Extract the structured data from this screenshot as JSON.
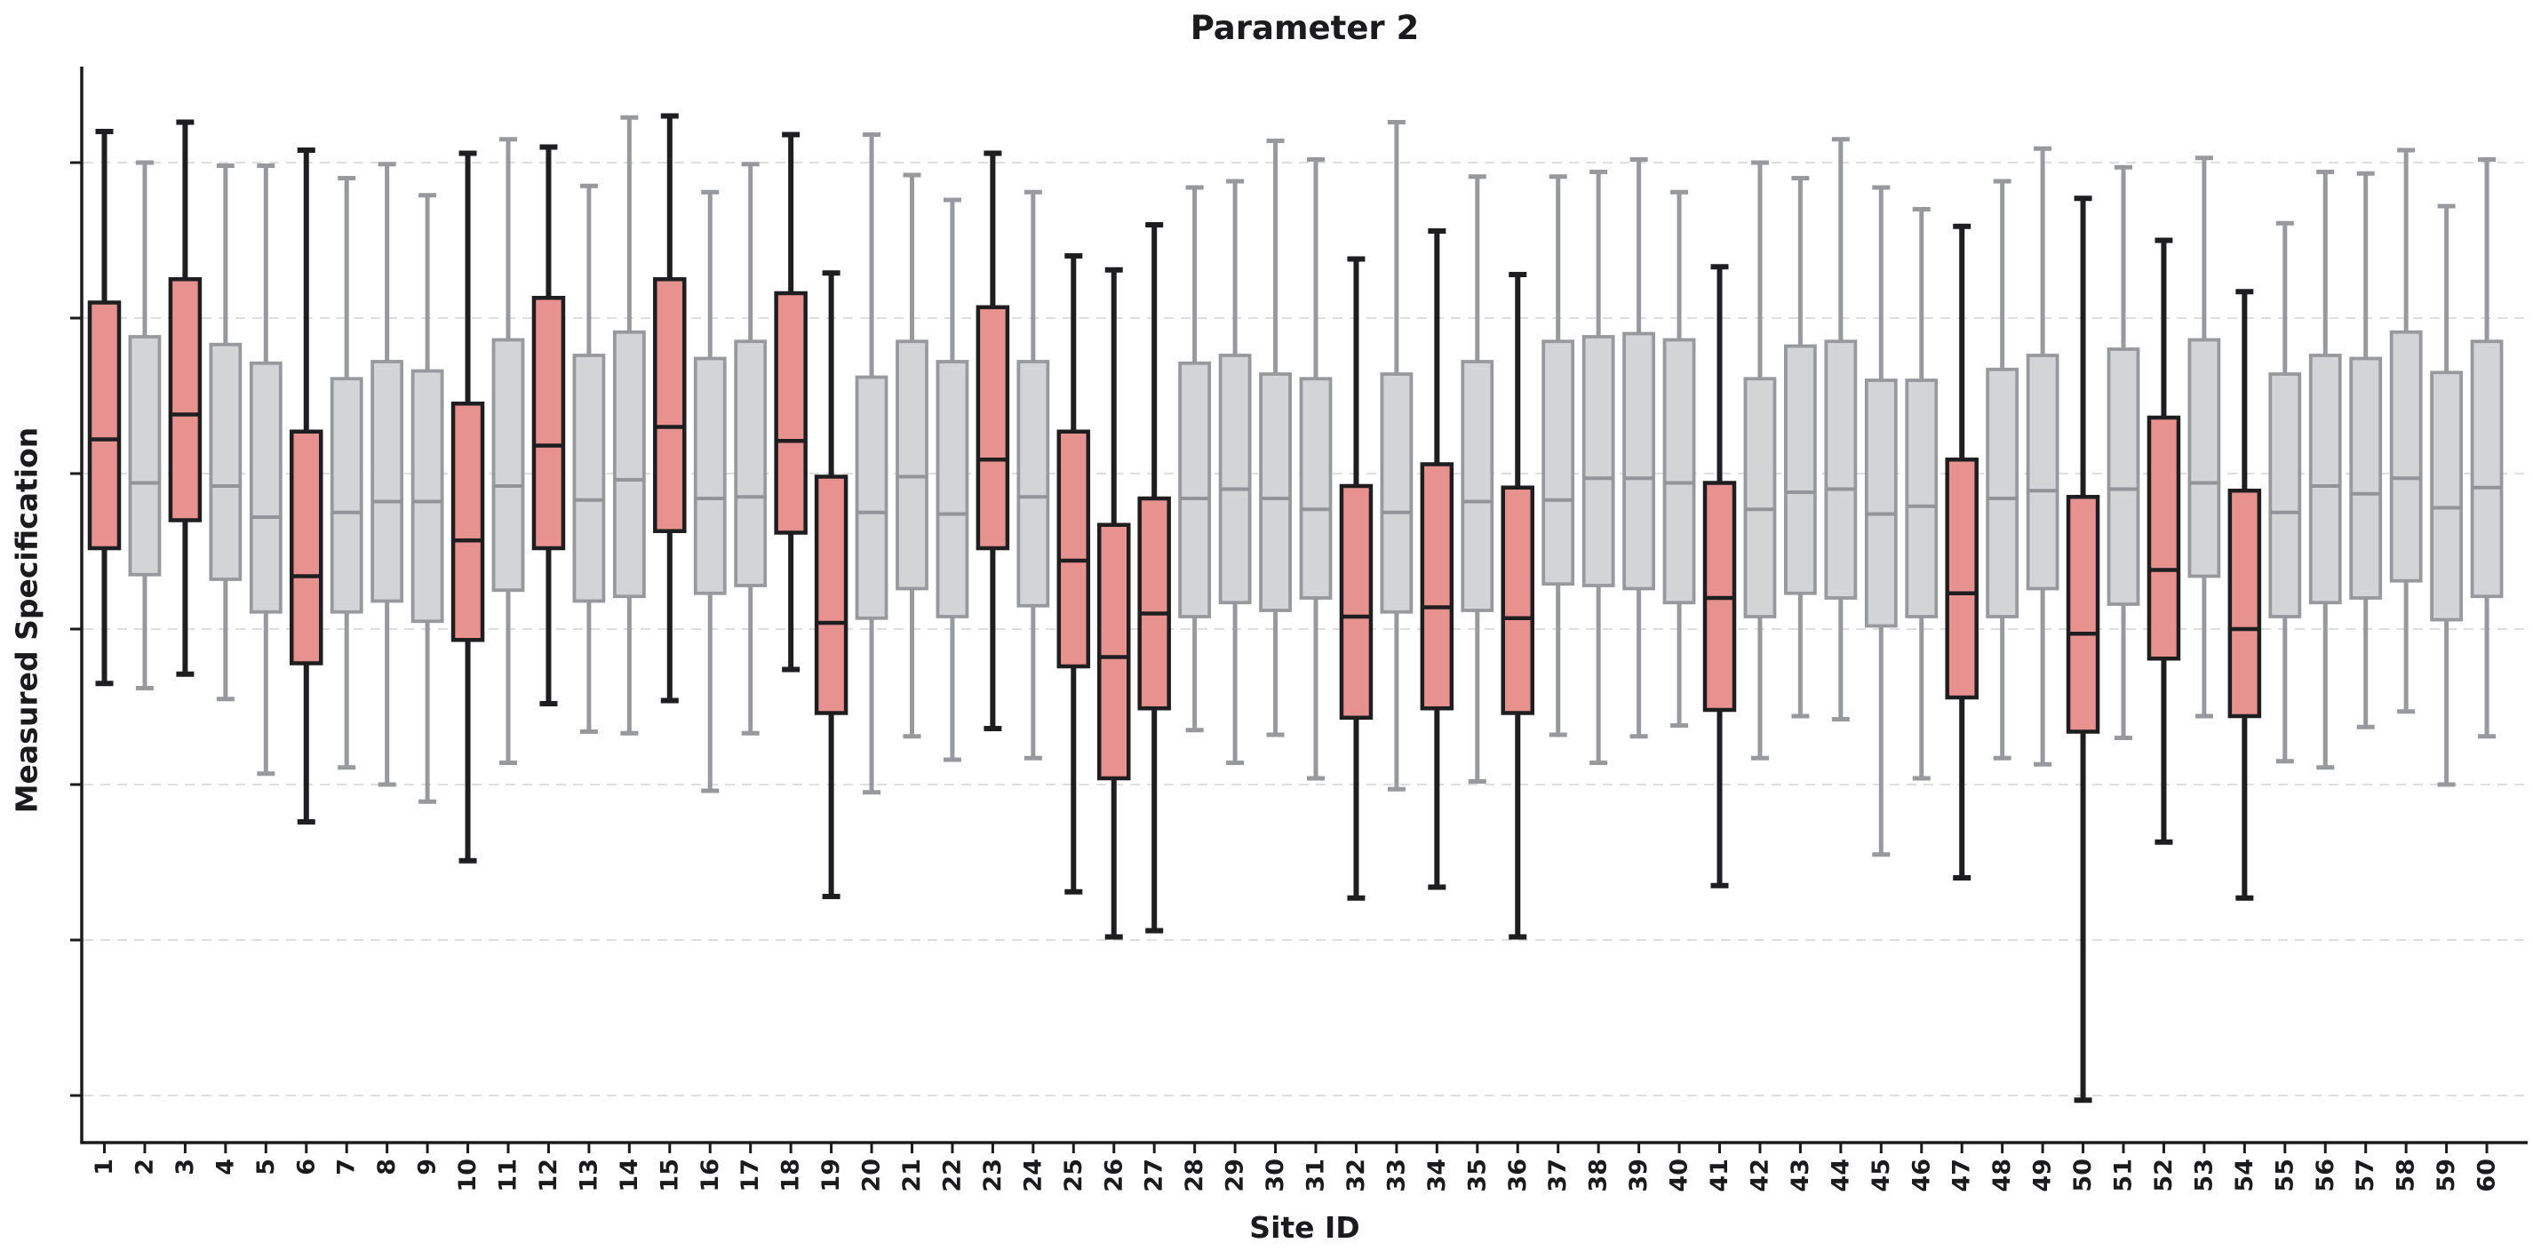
{
  "title": "Parameter 2",
  "x_axis": {
    "label": "Site ID"
  },
  "y_axis": {
    "label": "Measured Specification",
    "tick_labels_visible": false,
    "tick_count": 7
  },
  "colors": {
    "background": "#ffffff",
    "highlight_fill": "#E8928F",
    "highlight_stroke": "#1E1E20",
    "normal_fill": "#D3D4D6",
    "normal_stroke": "#97999C",
    "normal_median": "#929497",
    "grid": "#DADADA",
    "axis": "#1B1B1D"
  },
  "chart_data": {
    "type": "boxplot",
    "title": "Parameter 2",
    "xlabel": "Site ID",
    "ylabel": "Measured Specification",
    "legend": "none",
    "grid": "horizontal-dashed",
    "y_tick_labels": [],
    "y_gridline_values": [
      1,
      2,
      3,
      4,
      5,
      6,
      7
    ],
    "ylim": [
      0.7,
      7.6
    ],
    "y_units": "unlabeled",
    "series": [
      {
        "site": 1,
        "group": "highlight",
        "whislo": 3.65,
        "q1": 4.52,
        "med": 5.22,
        "q3": 6.1,
        "whishi": 7.2
      },
      {
        "site": 2,
        "group": "normal",
        "whislo": 3.62,
        "q1": 4.35,
        "med": 4.94,
        "q3": 5.88,
        "whishi": 7.0
      },
      {
        "site": 3,
        "group": "highlight",
        "whislo": 3.71,
        "q1": 4.7,
        "med": 5.38,
        "q3": 6.25,
        "whishi": 7.26
      },
      {
        "site": 4,
        "group": "normal",
        "whislo": 3.55,
        "q1": 4.32,
        "med": 4.92,
        "q3": 5.83,
        "whishi": 6.98
      },
      {
        "site": 5,
        "group": "normal",
        "whislo": 3.07,
        "q1": 4.11,
        "med": 4.72,
        "q3": 5.71,
        "whishi": 6.98
      },
      {
        "site": 6,
        "group": "highlight",
        "whislo": 2.76,
        "q1": 3.78,
        "med": 4.34,
        "q3": 5.27,
        "whishi": 7.08
      },
      {
        "site": 7,
        "group": "normal",
        "whislo": 3.11,
        "q1": 4.11,
        "med": 4.75,
        "q3": 5.61,
        "whishi": 6.9
      },
      {
        "site": 8,
        "group": "normal",
        "whislo": 3.0,
        "q1": 4.18,
        "med": 4.82,
        "q3": 5.72,
        "whishi": 6.99
      },
      {
        "site": 9,
        "group": "normal",
        "whislo": 2.89,
        "q1": 4.05,
        "med": 4.82,
        "q3": 5.66,
        "whishi": 6.79
      },
      {
        "site": 10,
        "group": "highlight",
        "whislo": 2.51,
        "q1": 3.93,
        "med": 4.57,
        "q3": 5.45,
        "whishi": 7.06
      },
      {
        "site": 11,
        "group": "normal",
        "whislo": 3.14,
        "q1": 4.25,
        "med": 4.92,
        "q3": 5.86,
        "whishi": 7.15
      },
      {
        "site": 12,
        "group": "highlight",
        "whislo": 3.52,
        "q1": 4.52,
        "med": 5.18,
        "q3": 6.13,
        "whishi": 7.1
      },
      {
        "site": 13,
        "group": "normal",
        "whislo": 3.34,
        "q1": 4.18,
        "med": 4.83,
        "q3": 5.76,
        "whishi": 6.85
      },
      {
        "site": 14,
        "group": "normal",
        "whislo": 3.33,
        "q1": 4.21,
        "med": 4.96,
        "q3": 5.91,
        "whishi": 7.29
      },
      {
        "site": 15,
        "group": "highlight",
        "whislo": 3.54,
        "q1": 4.63,
        "med": 5.3,
        "q3": 6.25,
        "whishi": 7.3
      },
      {
        "site": 16,
        "group": "normal",
        "whislo": 2.96,
        "q1": 4.23,
        "med": 4.84,
        "q3": 5.74,
        "whishi": 6.81
      },
      {
        "site": 17,
        "group": "normal",
        "whislo": 3.33,
        "q1": 4.28,
        "med": 4.85,
        "q3": 5.85,
        "whishi": 6.99
      },
      {
        "site": 18,
        "group": "highlight",
        "whislo": 3.74,
        "q1": 4.62,
        "med": 5.21,
        "q3": 6.16,
        "whishi": 7.18
      },
      {
        "site": 19,
        "group": "highlight",
        "whislo": 2.28,
        "q1": 3.46,
        "med": 4.04,
        "q3": 4.98,
        "whishi": 6.29
      },
      {
        "site": 20,
        "group": "normal",
        "whislo": 2.95,
        "q1": 4.07,
        "med": 4.75,
        "q3": 5.62,
        "whishi": 7.18
      },
      {
        "site": 21,
        "group": "normal",
        "whislo": 3.31,
        "q1": 4.26,
        "med": 4.98,
        "q3": 5.85,
        "whishi": 6.92
      },
      {
        "site": 22,
        "group": "normal",
        "whislo": 3.16,
        "q1": 4.08,
        "med": 4.74,
        "q3": 5.72,
        "whishi": 6.76
      },
      {
        "site": 23,
        "group": "highlight",
        "whislo": 3.36,
        "q1": 4.52,
        "med": 5.09,
        "q3": 6.07,
        "whishi": 7.06
      },
      {
        "site": 24,
        "group": "normal",
        "whislo": 3.17,
        "q1": 4.15,
        "med": 4.85,
        "q3": 5.72,
        "whishi": 6.81
      },
      {
        "site": 25,
        "group": "highlight",
        "whislo": 2.31,
        "q1": 3.76,
        "med": 4.44,
        "q3": 5.27,
        "whishi": 6.4
      },
      {
        "site": 26,
        "group": "highlight",
        "whislo": 2.02,
        "q1": 3.04,
        "med": 3.82,
        "q3": 4.67,
        "whishi": 6.31
      },
      {
        "site": 27,
        "group": "highlight",
        "whislo": 2.06,
        "q1": 3.49,
        "med": 4.1,
        "q3": 4.84,
        "whishi": 6.6
      },
      {
        "site": 28,
        "group": "normal",
        "whislo": 3.35,
        "q1": 4.08,
        "med": 4.84,
        "q3": 5.71,
        "whishi": 6.84
      },
      {
        "site": 29,
        "group": "normal",
        "whislo": 3.14,
        "q1": 4.17,
        "med": 4.9,
        "q3": 5.76,
        "whishi": 6.88
      },
      {
        "site": 30,
        "group": "normal",
        "whislo": 3.32,
        "q1": 4.12,
        "med": 4.84,
        "q3": 5.64,
        "whishi": 7.14
      },
      {
        "site": 31,
        "group": "normal",
        "whislo": 3.04,
        "q1": 4.2,
        "med": 4.77,
        "q3": 5.61,
        "whishi": 7.02
      },
      {
        "site": 32,
        "group": "highlight",
        "whislo": 2.27,
        "q1": 3.43,
        "med": 4.08,
        "q3": 4.92,
        "whishi": 6.38
      },
      {
        "site": 33,
        "group": "normal",
        "whislo": 2.97,
        "q1": 4.11,
        "med": 4.75,
        "q3": 5.64,
        "whishi": 7.26
      },
      {
        "site": 34,
        "group": "highlight",
        "whislo": 2.34,
        "q1": 3.49,
        "med": 4.14,
        "q3": 5.06,
        "whishi": 6.56
      },
      {
        "site": 35,
        "group": "normal",
        "whislo": 3.02,
        "q1": 4.12,
        "med": 4.82,
        "q3": 5.72,
        "whishi": 6.91
      },
      {
        "site": 36,
        "group": "highlight",
        "whislo": 2.02,
        "q1": 3.46,
        "med": 4.07,
        "q3": 4.91,
        "whishi": 6.28
      },
      {
        "site": 37,
        "group": "normal",
        "whislo": 3.32,
        "q1": 4.29,
        "med": 4.83,
        "q3": 5.85,
        "whishi": 6.91
      },
      {
        "site": 38,
        "group": "normal",
        "whislo": 3.14,
        "q1": 4.28,
        "med": 4.97,
        "q3": 5.88,
        "whishi": 6.94
      },
      {
        "site": 39,
        "group": "normal",
        "whislo": 3.31,
        "q1": 4.26,
        "med": 4.97,
        "q3": 5.9,
        "whishi": 7.02
      },
      {
        "site": 40,
        "group": "normal",
        "whislo": 3.38,
        "q1": 4.17,
        "med": 4.94,
        "q3": 5.86,
        "whishi": 6.81
      },
      {
        "site": 41,
        "group": "highlight",
        "whislo": 2.35,
        "q1": 3.48,
        "med": 4.2,
        "q3": 4.94,
        "whishi": 6.33
      },
      {
        "site": 42,
        "group": "normal",
        "whislo": 3.17,
        "q1": 4.08,
        "med": 4.77,
        "q3": 5.61,
        "whishi": 7.0
      },
      {
        "site": 43,
        "group": "normal",
        "whislo": 3.44,
        "q1": 4.23,
        "med": 4.88,
        "q3": 5.82,
        "whishi": 6.9
      },
      {
        "site": 44,
        "group": "normal",
        "whislo": 3.42,
        "q1": 4.2,
        "med": 4.9,
        "q3": 5.85,
        "whishi": 7.15
      },
      {
        "site": 45,
        "group": "normal",
        "whislo": 2.55,
        "q1": 4.02,
        "med": 4.74,
        "q3": 5.6,
        "whishi": 6.84
      },
      {
        "site": 46,
        "group": "normal",
        "whislo": 3.04,
        "q1": 4.08,
        "med": 4.79,
        "q3": 5.6,
        "whishi": 6.7
      },
      {
        "site": 47,
        "group": "highlight",
        "whislo": 2.4,
        "q1": 3.56,
        "med": 4.23,
        "q3": 5.09,
        "whishi": 6.59
      },
      {
        "site": 48,
        "group": "normal",
        "whislo": 3.17,
        "q1": 4.08,
        "med": 4.84,
        "q3": 5.67,
        "whishi": 6.88
      },
      {
        "site": 49,
        "group": "normal",
        "whislo": 3.13,
        "q1": 4.26,
        "med": 4.89,
        "q3": 5.76,
        "whishi": 7.09
      },
      {
        "site": 50,
        "group": "highlight",
        "whislo": 0.97,
        "q1": 3.34,
        "med": 3.97,
        "q3": 4.85,
        "whishi": 6.77
      },
      {
        "site": 51,
        "group": "normal",
        "whislo": 3.3,
        "q1": 4.16,
        "med": 4.9,
        "q3": 5.8,
        "whishi": 6.97
      },
      {
        "site": 52,
        "group": "highlight",
        "whislo": 2.63,
        "q1": 3.81,
        "med": 4.38,
        "q3": 5.36,
        "whishi": 6.5
      },
      {
        "site": 53,
        "group": "normal",
        "whislo": 3.44,
        "q1": 4.34,
        "med": 4.94,
        "q3": 5.86,
        "whishi": 7.03
      },
      {
        "site": 54,
        "group": "highlight",
        "whislo": 2.27,
        "q1": 3.44,
        "med": 4.0,
        "q3": 4.89,
        "whishi": 6.17
      },
      {
        "site": 55,
        "group": "normal",
        "whislo": 3.15,
        "q1": 4.08,
        "med": 4.75,
        "q3": 5.64,
        "whishi": 6.61
      },
      {
        "site": 56,
        "group": "normal",
        "whislo": 3.11,
        "q1": 4.17,
        "med": 4.92,
        "q3": 5.76,
        "whishi": 6.94
      },
      {
        "site": 57,
        "group": "normal",
        "whislo": 3.37,
        "q1": 4.2,
        "med": 4.87,
        "q3": 5.74,
        "whishi": 6.93
      },
      {
        "site": 58,
        "group": "normal",
        "whislo": 3.47,
        "q1": 4.31,
        "med": 4.97,
        "q3": 5.91,
        "whishi": 7.08
      },
      {
        "site": 59,
        "group": "normal",
        "whislo": 3.0,
        "q1": 4.06,
        "med": 4.78,
        "q3": 5.65,
        "whishi": 6.72
      },
      {
        "site": 60,
        "group": "normal",
        "whislo": 3.31,
        "q1": 4.21,
        "med": 4.91,
        "q3": 5.85,
        "whishi": 7.02
      }
    ]
  }
}
